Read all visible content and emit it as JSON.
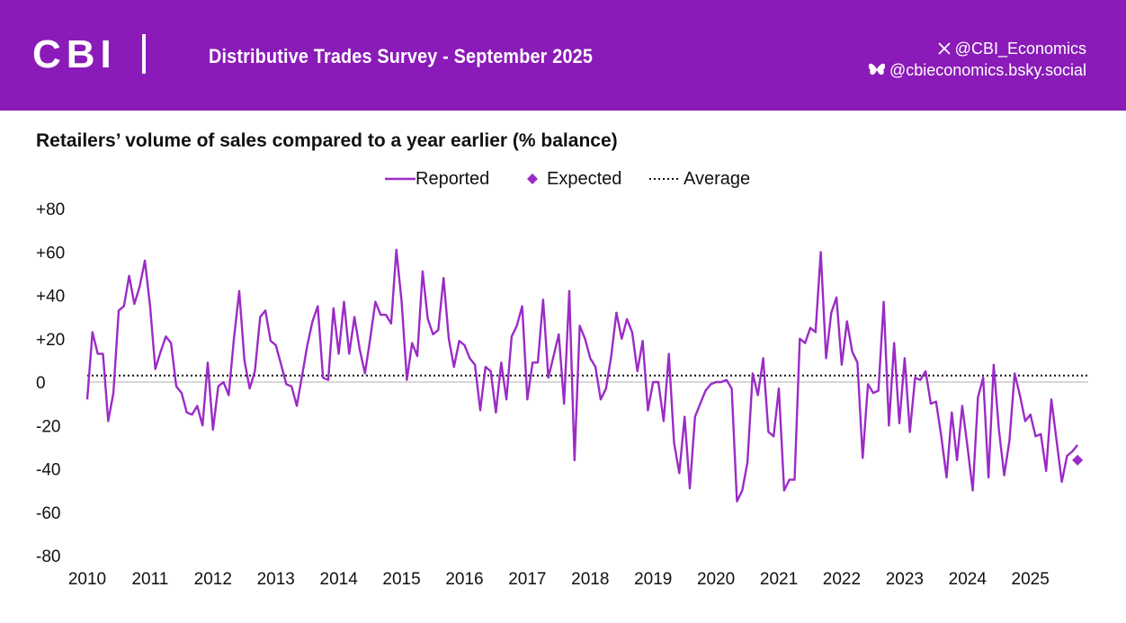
{
  "header": {
    "logo_text": "CBI",
    "survey_title": "Distributive Trades Survey - September 2025",
    "social": {
      "x_handle": "@CBI_Economics",
      "bluesky_handle": "@cbieconomics.bsky.social"
    },
    "icons": [
      "x-logo-icon",
      "butterfly-icon"
    ]
  },
  "colors": {
    "brand": "#8A1BB8",
    "series": "#9B2BC6",
    "average": "#111111",
    "zero_line": "#cccccc"
  },
  "chart_data": {
    "type": "line",
    "title": "Retailers’ volume of sales compared to a year earlier (% balance)",
    "xlabel": "",
    "ylabel": "",
    "ylim": [
      -80,
      80
    ],
    "yticks": [
      80,
      60,
      40,
      20,
      0,
      -20,
      -40,
      -60,
      -80
    ],
    "ytick_labels": [
      "+80",
      "+60",
      "+40",
      "+20",
      "0",
      "-20",
      "-40",
      "-60",
      "-80"
    ],
    "xlim": [
      2010.0,
      2025.92
    ],
    "xticks": [
      2010,
      2011,
      2012,
      2013,
      2014,
      2015,
      2016,
      2017,
      2018,
      2019,
      2020,
      2021,
      2022,
      2023,
      2024,
      2025
    ],
    "xtick_labels": [
      "2010",
      "2011",
      "2012",
      "2013",
      "2014",
      "2015",
      "2016",
      "2017",
      "2018",
      "2019",
      "2020",
      "2021",
      "2022",
      "2023",
      "2024",
      "2025"
    ],
    "grid": false,
    "legend": {
      "position": "top-center",
      "labels": {
        "reported": "Reported",
        "expected": "Expected",
        "average": "Average"
      }
    },
    "series": [
      {
        "name": "Reported",
        "style": "line",
        "start": "2010-01",
        "frequency": "monthly",
        "values": [
          -8,
          23,
          13,
          13,
          -18,
          -5,
          33,
          35,
          49,
          36,
          44,
          56,
          35,
          6,
          14,
          21,
          18,
          -2,
          -5,
          -14,
          -15,
          -11,
          -20,
          9,
          -22,
          -2,
          0,
          -6,
          20,
          42,
          10,
          -3,
          5,
          30,
          33,
          19,
          17,
          8,
          -1,
          -2,
          -11,
          3,
          17,
          28,
          35,
          2,
          1,
          34,
          13,
          37,
          13,
          30,
          15,
          4,
          20,
          37,
          31,
          31,
          27,
          61,
          37,
          1,
          18,
          12,
          51,
          29,
          22,
          24,
          48,
          20,
          7,
          19,
          17,
          11,
          8,
          -13,
          7,
          5,
          -14,
          9,
          -8,
          21,
          26,
          35,
          -8,
          9,
          9,
          38,
          2,
          12,
          22,
          -10,
          42,
          -36,
          26,
          20,
          11,
          7,
          -8,
          -3,
          12,
          32,
          20,
          29,
          23,
          5,
          19,
          -13,
          0,
          0,
          -18,
          13,
          -28,
          -42,
          -16,
          -49,
          -16,
          -10,
          -4,
          -1,
          0,
          0,
          1,
          -3,
          -55,
          -50,
          -37,
          4,
          -6,
          11,
          -23,
          -25,
          -3,
          -50,
          -45,
          -45,
          20,
          18,
          25,
          23,
          60,
          11,
          32,
          39,
          8,
          28,
          14,
          9,
          -35,
          -1,
          -5,
          -4,
          37,
          -20,
          18,
          -19,
          11,
          -23,
          2,
          1,
          5,
          -10,
          -9,
          -25,
          -44,
          -14,
          -36,
          -11,
          -30,
          -50,
          -7,
          2,
          -44,
          8,
          -22,
          -43,
          -27,
          4,
          -6,
          -18,
          -15,
          -25,
          -24,
          -41,
          -8,
          -27,
          -46,
          -34,
          -32,
          -29
        ]
      },
      {
        "name": "Expected",
        "style": "marker",
        "date": "2025-10",
        "value": -36
      },
      {
        "name": "Average",
        "style": "dotted",
        "value": 3
      }
    ]
  }
}
